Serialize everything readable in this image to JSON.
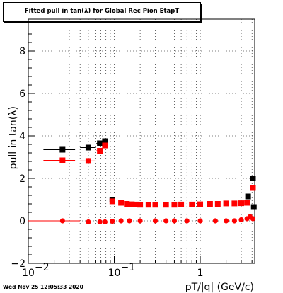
{
  "title": "Fitted pull in tan(λ) for Global Rec Pion EtapT",
  "timestamp": "Wed Nov 25 12:05:33 2020",
  "colors": {
    "series_black": "#000000",
    "series_red": "#ff0000",
    "grid": "#000000"
  },
  "chart_data": {
    "type": "scatter",
    "xlabel": "pT/|q| (GeV/c)",
    "ylabel": "pull in tan(λ)",
    "xscale": "log",
    "xlim": [
      0.01,
      4.3
    ],
    "ylim": [
      -2,
      9.5
    ],
    "grid": true,
    "x_tick_labels": [
      {
        "value": 0.01,
        "label": "10",
        "exp": "−2"
      },
      {
        "value": 0.1,
        "label": "10",
        "exp": "−1"
      },
      {
        "value": 1,
        "label": "1",
        "exp": ""
      }
    ],
    "y_ticks": [
      -2,
      0,
      2,
      4,
      6,
      8
    ],
    "series": [
      {
        "color": "#000000",
        "marker": "square",
        "points": [
          {
            "x": 0.025,
            "y": 3.35,
            "xerr": 0.01
          },
          {
            "x": 0.05,
            "y": 3.45,
            "xerr": 0.01
          },
          {
            "x": 0.068,
            "y": 3.65,
            "xerr": 0.006
          },
          {
            "x": 0.078,
            "y": 3.75,
            "xerr": 0.005
          },
          {
            "x": 0.095,
            "y": 1.0,
            "xerr": 0.005
          },
          {
            "x": 3.6,
            "y": 1.15,
            "xerr": 0.15
          },
          {
            "x": 4.1,
            "y": 2.0,
            "xerr": 0.15,
            "yerr": 1.3
          },
          {
            "x": 4.2,
            "y": 0.65,
            "xerr": 0.1
          }
        ]
      },
      {
        "color": "#ff0000",
        "marker": "square",
        "points": [
          {
            "x": 0.025,
            "y": 2.85,
            "xerr": 0.01
          },
          {
            "x": 0.05,
            "y": 2.82,
            "xerr": 0.01
          },
          {
            "x": 0.068,
            "y": 3.3,
            "xerr": 0.006
          },
          {
            "x": 0.078,
            "y": 3.55,
            "xerr": 0.005
          },
          {
            "x": 0.095,
            "y": 0.92,
            "xerr": 0.005
          },
          {
            "x": 0.12,
            "y": 0.85
          },
          {
            "x": 0.14,
            "y": 0.8
          },
          {
            "x": 0.16,
            "y": 0.78
          },
          {
            "x": 0.18,
            "y": 0.77
          },
          {
            "x": 0.2,
            "y": 0.76
          },
          {
            "x": 0.25,
            "y": 0.76
          },
          {
            "x": 0.3,
            "y": 0.76
          },
          {
            "x": 0.4,
            "y": 0.76
          },
          {
            "x": 0.5,
            "y": 0.76
          },
          {
            "x": 0.6,
            "y": 0.77
          },
          {
            "x": 0.8,
            "y": 0.77
          },
          {
            "x": 1.0,
            "y": 0.78
          },
          {
            "x": 1.3,
            "y": 0.8
          },
          {
            "x": 1.6,
            "y": 0.8
          },
          {
            "x": 2.0,
            "y": 0.82
          },
          {
            "x": 2.5,
            "y": 0.82
          },
          {
            "x": 3.0,
            "y": 0.83
          },
          {
            "x": 3.5,
            "y": 0.85
          },
          {
            "x": 4.1,
            "y": 1.55,
            "xerr": 0.15,
            "yerr": 0.8
          }
        ]
      },
      {
        "color": "#ff0000",
        "marker": "circle",
        "points": [
          {
            "x": 0.025,
            "y": 0.0,
            "xerr": 0.015
          },
          {
            "x": 0.05,
            "y": -0.05,
            "xerr": 0.01
          },
          {
            "x": 0.068,
            "y": -0.05,
            "xerr": 0.006
          },
          {
            "x": 0.078,
            "y": -0.05,
            "xerr": 0.005
          },
          {
            "x": 0.095,
            "y": -0.02
          },
          {
            "x": 0.12,
            "y": 0.0
          },
          {
            "x": 0.15,
            "y": 0.0
          },
          {
            "x": 0.2,
            "y": 0.0
          },
          {
            "x": 0.3,
            "y": 0.0
          },
          {
            "x": 0.4,
            "y": 0.0
          },
          {
            "x": 0.5,
            "y": 0.0
          },
          {
            "x": 0.7,
            "y": 0.0
          },
          {
            "x": 1.0,
            "y": 0.0
          },
          {
            "x": 1.5,
            "y": 0.0
          },
          {
            "x": 2.0,
            "y": 0.0
          },
          {
            "x": 2.5,
            "y": 0.0
          },
          {
            "x": 3.0,
            "y": 0.05
          },
          {
            "x": 3.5,
            "y": 0.1
          },
          {
            "x": 3.8,
            "y": 0.2
          },
          {
            "x": 4.1,
            "y": 0.1,
            "xerr": 0.15,
            "yerr": 0.5
          }
        ]
      }
    ]
  }
}
